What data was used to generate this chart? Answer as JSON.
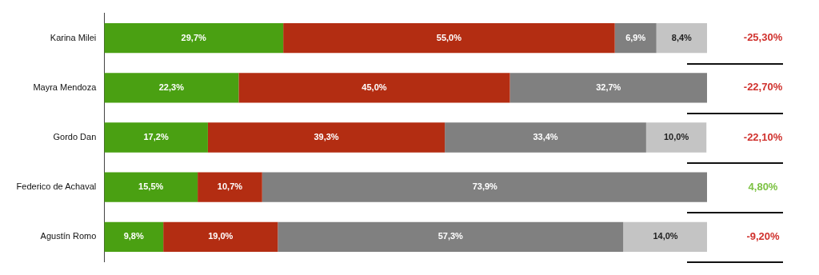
{
  "chart_data": {
    "type": "bar",
    "orientation": "horizontal",
    "stacked": true,
    "tick_labels": "y",
    "xlim": [
      0,
      100
    ],
    "categories": [
      "Karina Milei",
      "Mayra Mendoza",
      "Gordo Dan",
      "Federico de Achaval",
      "Agustín Romo"
    ],
    "series": [
      {
        "color": "#4aa012",
        "values": [
          29.7,
          22.3,
          17.2,
          15.5,
          9.8
        ],
        "value_labels": [
          "29,7%",
          "22,3%",
          "17,2%",
          "15,5%",
          "9,8%"
        ]
      },
      {
        "color": "#b32d12",
        "values": [
          55.0,
          45.0,
          39.3,
          10.7,
          19.0
        ],
        "value_labels": [
          "55,0%",
          "45,0%",
          "39,3%",
          "10,7%",
          "19,0%"
        ]
      },
      {
        "color": "#808080",
        "values": [
          6.9,
          32.7,
          33.4,
          73.9,
          57.3
        ],
        "value_labels": [
          "6,9%",
          "32,7%",
          "33,4%",
          "73,9%",
          "57,3%"
        ]
      },
      {
        "color": "#c4c4c4",
        "values": [
          8.4,
          null,
          10.0,
          null,
          14.0
        ],
        "value_labels": [
          "8,4%",
          null,
          "10,0%",
          null,
          "14,0%"
        ]
      }
    ],
    "annotations": [
      "-25,30%",
      "-22,70%",
      "-22,10%",
      "4,80%",
      "-9,20%"
    ],
    "legend": false,
    "grid": false
  }
}
